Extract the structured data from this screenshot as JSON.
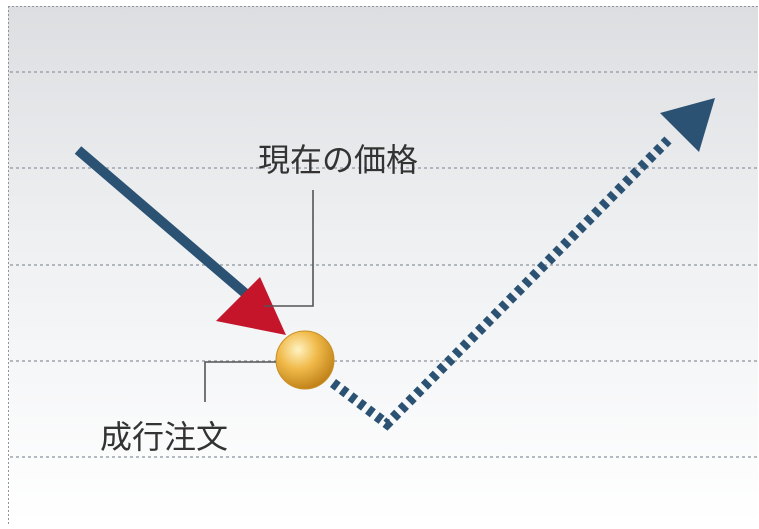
{
  "labels": {
    "current_price": "現在の価格",
    "market_order": "成行注文"
  },
  "colors": {
    "past_trend": "#2c5273",
    "future_trend": "#2c5273",
    "current_price_marker": "#c4152b",
    "order_point": "#e5a93a",
    "grid_line": "#9ea4ab",
    "leader_line": "#555555",
    "label_text": "#333333"
  },
  "icons": {
    "past_trend": "solid-arrow",
    "future_trend": "dotted-arrow",
    "current_price_marker": "triangle-arrowhead",
    "order_point": "gold-circle"
  }
}
